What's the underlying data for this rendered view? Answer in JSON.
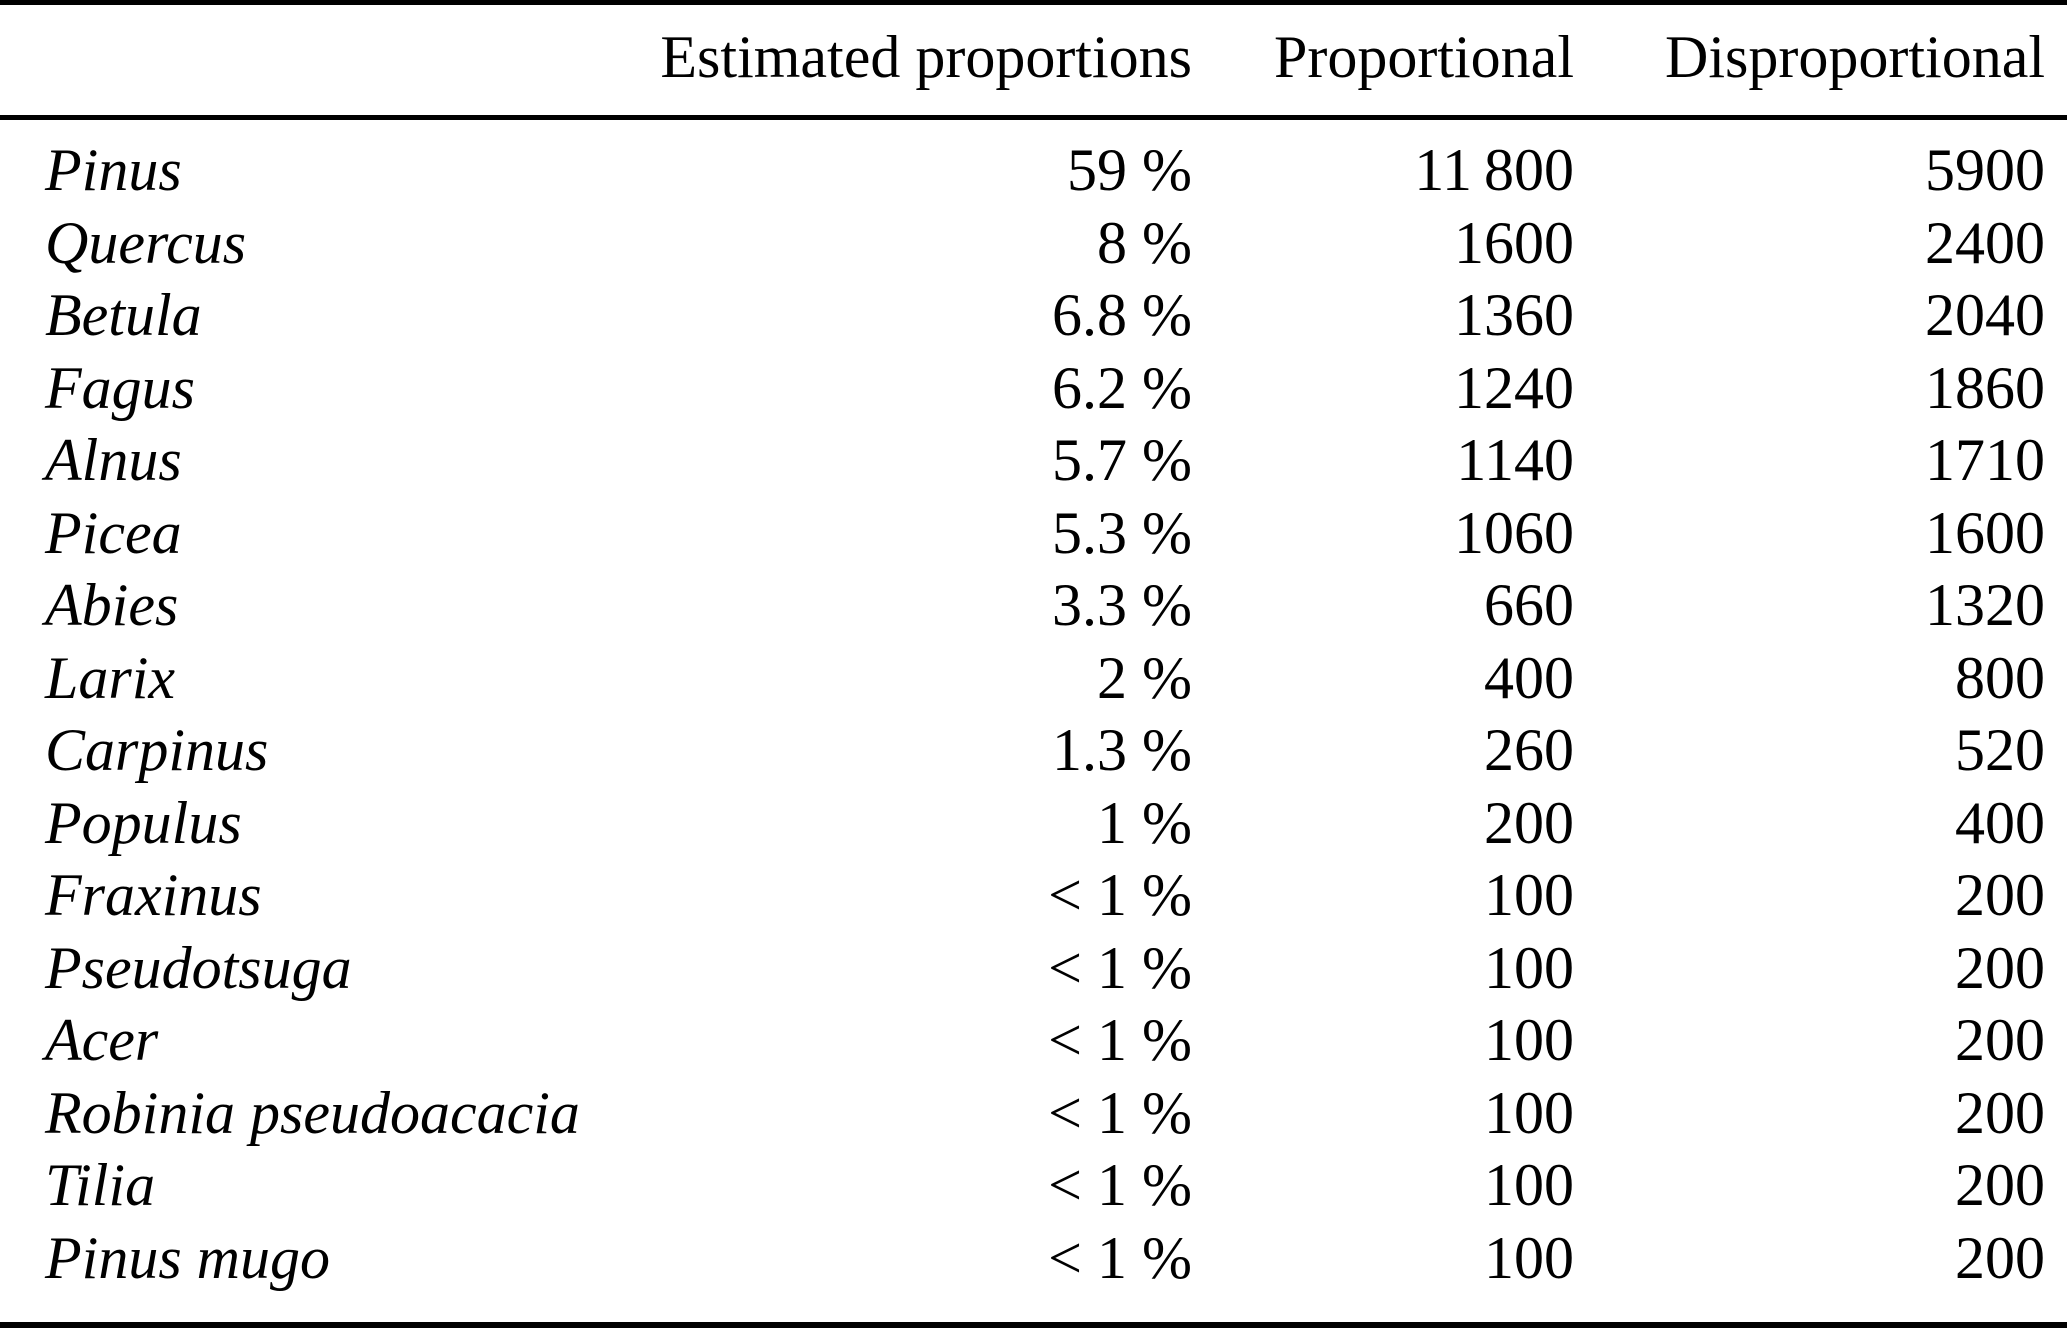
{
  "table": {
    "columns": [
      "",
      "Estimated proportions",
      "Proportional",
      "Disproportional"
    ],
    "rows": [
      {
        "genus": "Pinus",
        "estimated": "59 %",
        "proportional": "11 800",
        "disproportional": "5900"
      },
      {
        "genus": "Quercus",
        "estimated": "8 %",
        "proportional": "1600",
        "disproportional": "2400"
      },
      {
        "genus": "Betula",
        "estimated": "6.8 %",
        "proportional": "1360",
        "disproportional": "2040"
      },
      {
        "genus": "Fagus",
        "estimated": "6.2 %",
        "proportional": "1240",
        "disproportional": "1860"
      },
      {
        "genus": "Alnus",
        "estimated": "5.7 %",
        "proportional": "1140",
        "disproportional": "1710"
      },
      {
        "genus": "Picea",
        "estimated": "5.3 %",
        "proportional": "1060",
        "disproportional": "1600"
      },
      {
        "genus": "Abies",
        "estimated": "3.3 %",
        "proportional": "660",
        "disproportional": "1320"
      },
      {
        "genus": "Larix",
        "estimated": "2 %",
        "proportional": "400",
        "disproportional": "800"
      },
      {
        "genus": "Carpinus",
        "estimated": "1.3 %",
        "proportional": "260",
        "disproportional": "520"
      },
      {
        "genus": "Populus",
        "estimated": "1 %",
        "proportional": "200",
        "disproportional": "400"
      },
      {
        "genus": "Fraxinus",
        "estimated": "< 1 %",
        "proportional": "100",
        "disproportional": "200"
      },
      {
        "genus": "Pseudotsuga",
        "estimated": "< 1 %",
        "proportional": "100",
        "disproportional": "200"
      },
      {
        "genus": "Acer",
        "estimated": "< 1 %",
        "proportional": "100",
        "disproportional": "200"
      },
      {
        "genus": "Robinia pseudoacacia",
        "estimated": "< 1 %",
        "proportional": "100",
        "disproportional": "200"
      },
      {
        "genus": "Tilia",
        "estimated": "< 1 %",
        "proportional": "100",
        "disproportional": "200"
      },
      {
        "genus": "Pinus mugo",
        "estimated": "< 1 %",
        "proportional": "100",
        "disproportional": "200"
      }
    ]
  }
}
